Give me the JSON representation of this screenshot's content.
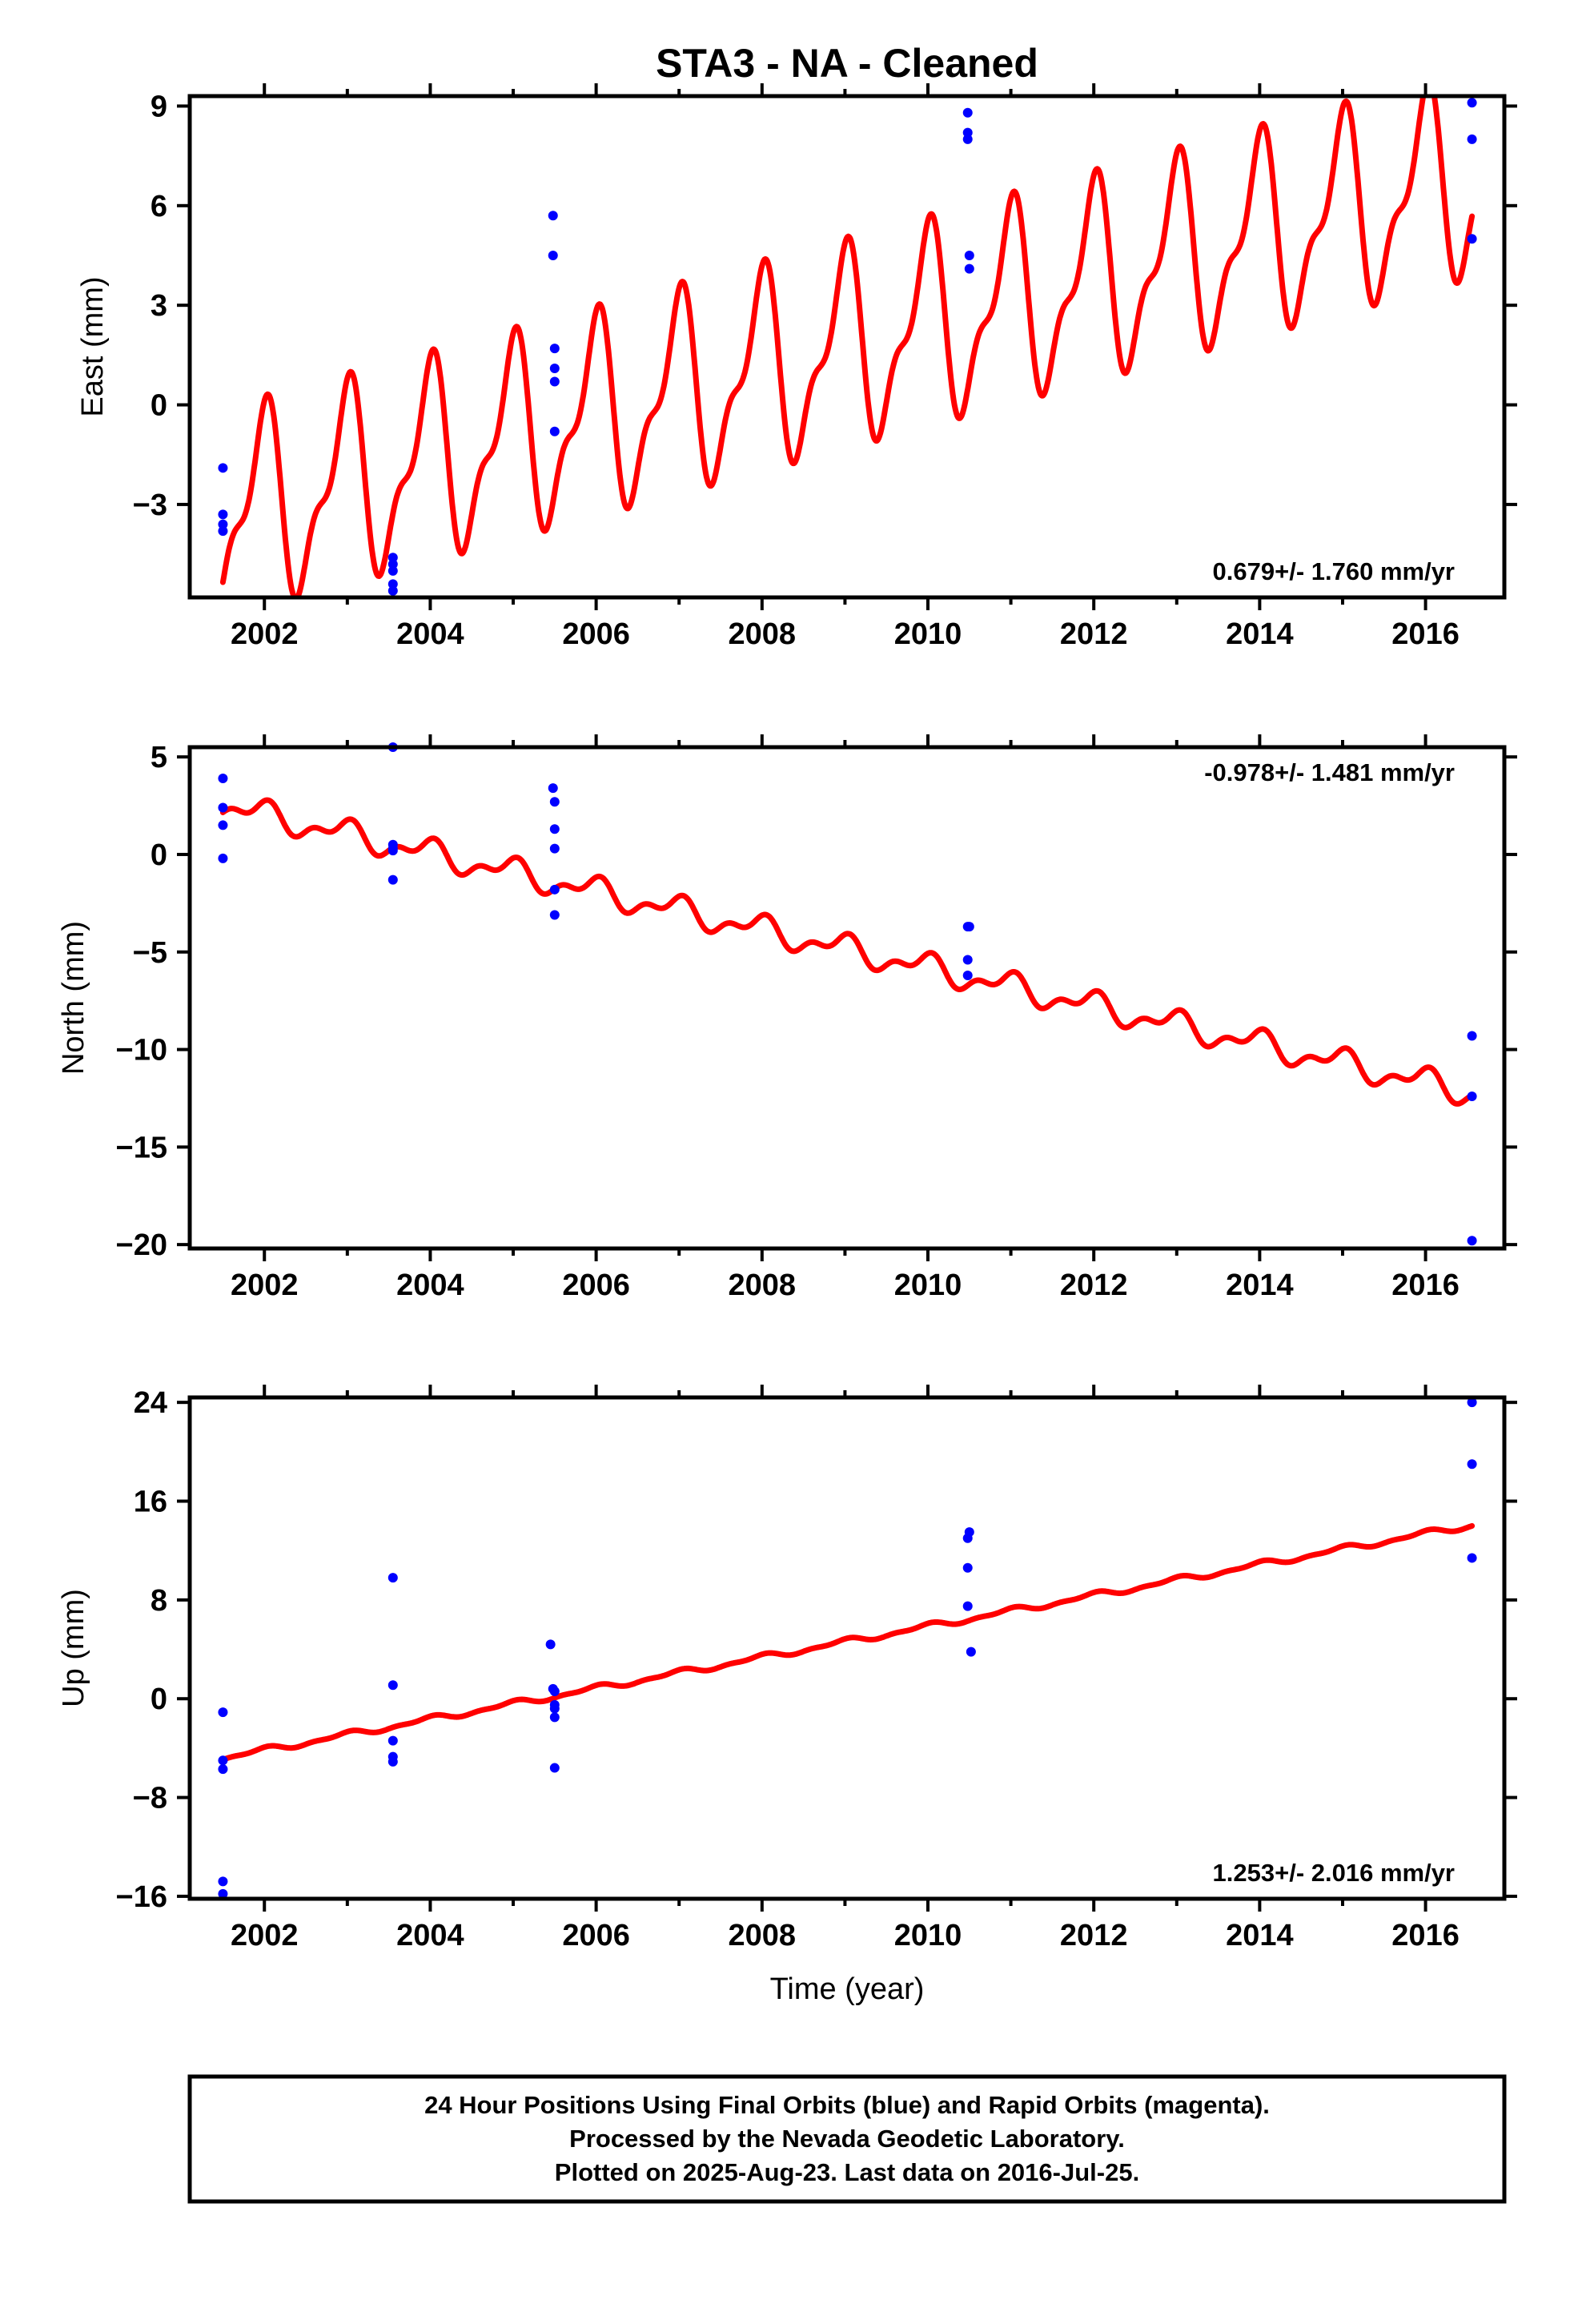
{
  "chart_data": {
    "type": "scatter",
    "title": "STA3  - NA - Cleaned",
    "xlabel": "Time (year)",
    "xlim": [
      2001.1,
      2016.95
    ],
    "x_ticks": [
      2002,
      2004,
      2006,
      2008,
      2010,
      2012,
      2014,
      2016
    ],
    "colors": {
      "points": "#0000ff",
      "fit": "#ff0000",
      "frame": "#000000"
    },
    "panels": [
      {
        "ylabel": "East (mm)",
        "ylim": [
          -5.8,
          9.3
        ],
        "y_ticks": [
          -3,
          0,
          3,
          6,
          9
        ],
        "rate_text": "0.679+/- 1.760 mm/yr",
        "rate_position": "bottom-right",
        "fit": {
          "start": 2001.5,
          "end": 2016.56,
          "offset": -3.4,
          "slope": 0.679,
          "seasonal_amplitude": 2.6,
          "semiannual_amplitude": 1.1,
          "steps": [
            {
              "x": 2005.5,
              "jump": 0
            }
          ]
        },
        "points": [
          [
            2001.5,
            -1.9
          ],
          [
            2001.5,
            -3.3
          ],
          [
            2001.5,
            -3.6
          ],
          [
            2001.5,
            -3.8
          ],
          [
            2003.55,
            -4.6
          ],
          [
            2003.55,
            -4.8
          ],
          [
            2003.55,
            -5.0
          ],
          [
            2003.55,
            -5.4
          ],
          [
            2003.55,
            -5.6
          ],
          [
            2005.48,
            5.7
          ],
          [
            2005.48,
            4.5
          ],
          [
            2005.5,
            1.7
          ],
          [
            2005.5,
            1.1
          ],
          [
            2005.5,
            0.7
          ],
          [
            2005.5,
            -0.8
          ],
          [
            2010.48,
            8.8
          ],
          [
            2010.48,
            8.2
          ],
          [
            2010.48,
            8.0
          ],
          [
            2010.5,
            4.5
          ],
          [
            2010.5,
            4.1
          ],
          [
            2016.56,
            9.1
          ],
          [
            2016.56,
            8.0
          ],
          [
            2016.56,
            5.0
          ]
        ]
      },
      {
        "ylabel": "North (mm)",
        "ylim": [
          -20.2,
          5.5
        ],
        "y_ticks": [
          -20,
          -15,
          -10,
          -5,
          0,
          5
        ],
        "rate_text": "-0.978+/- 1.481 mm/yr",
        "rate_position": "top-right",
        "fit": {
          "start": 2001.5,
          "end": 2016.56,
          "offset": 2.5,
          "slope": -0.978,
          "seasonal_amplitude": 0.55,
          "semiannual_amplitude": 0.35
        },
        "points": [
          [
            2001.5,
            3.9
          ],
          [
            2001.5,
            2.4
          ],
          [
            2001.5,
            1.5
          ],
          [
            2001.5,
            -0.2
          ],
          [
            2003.55,
            5.5
          ],
          [
            2003.55,
            0.5
          ],
          [
            2003.55,
            0.3
          ],
          [
            2003.55,
            0.2
          ],
          [
            2003.55,
            -1.3
          ],
          [
            2005.48,
            3.4
          ],
          [
            2005.5,
            2.7
          ],
          [
            2005.5,
            1.3
          ],
          [
            2005.5,
            0.3
          ],
          [
            2005.5,
            -1.8
          ],
          [
            2005.5,
            -3.1
          ],
          [
            2010.48,
            -3.7
          ],
          [
            2010.5,
            -3.7
          ],
          [
            2010.48,
            -5.4
          ],
          [
            2010.48,
            -6.2
          ],
          [
            2016.56,
            -9.3
          ],
          [
            2016.56,
            -12.4
          ],
          [
            2016.56,
            -19.8
          ]
        ]
      },
      {
        "ylabel": "Up (mm)",
        "ylim": [
          -16.2,
          24.4
        ],
        "y_ticks": [
          -16,
          -8,
          0,
          8,
          16,
          24
        ],
        "rate_text": "1.253+/- 2.016 mm/yr",
        "rate_position": "bottom-right",
        "fit": {
          "start": 2001.5,
          "end": 2016.56,
          "offset": -4.8,
          "slope": 1.253,
          "seasonal_amplitude": 0.2,
          "semiannual_amplitude": 0.1
        },
        "points": [
          [
            2001.5,
            -1.1
          ],
          [
            2001.5,
            -5.0
          ],
          [
            2001.5,
            -5.7
          ],
          [
            2001.5,
            -14.8
          ],
          [
            2001.5,
            -15.8
          ],
          [
            2003.55,
            9.8
          ],
          [
            2003.55,
            1.1
          ],
          [
            2003.55,
            -3.4
          ],
          [
            2003.55,
            -4.7
          ],
          [
            2003.55,
            -5.1
          ],
          [
            2005.45,
            4.4
          ],
          [
            2005.48,
            0.8
          ],
          [
            2005.5,
            0.6
          ],
          [
            2005.5,
            -0.5
          ],
          [
            2005.5,
            -0.8
          ],
          [
            2005.5,
            -1.5
          ],
          [
            2005.5,
            -5.6
          ],
          [
            2010.48,
            13.0
          ],
          [
            2010.5,
            13.5
          ],
          [
            2010.48,
            10.6
          ],
          [
            2010.48,
            7.5
          ],
          [
            2010.52,
            3.8
          ],
          [
            2016.56,
            24.0
          ],
          [
            2016.56,
            19.0
          ],
          [
            2016.56,
            11.4
          ]
        ]
      }
    ]
  },
  "footer": {
    "line1": "24 Hour Positions Using Final Orbits (blue) and Rapid Orbits (magenta).",
    "line2": "Processed by the Nevada Geodetic Laboratory.",
    "line3": "Plotted on 2025-Aug-23. Last data on 2016-Jul-25."
  }
}
